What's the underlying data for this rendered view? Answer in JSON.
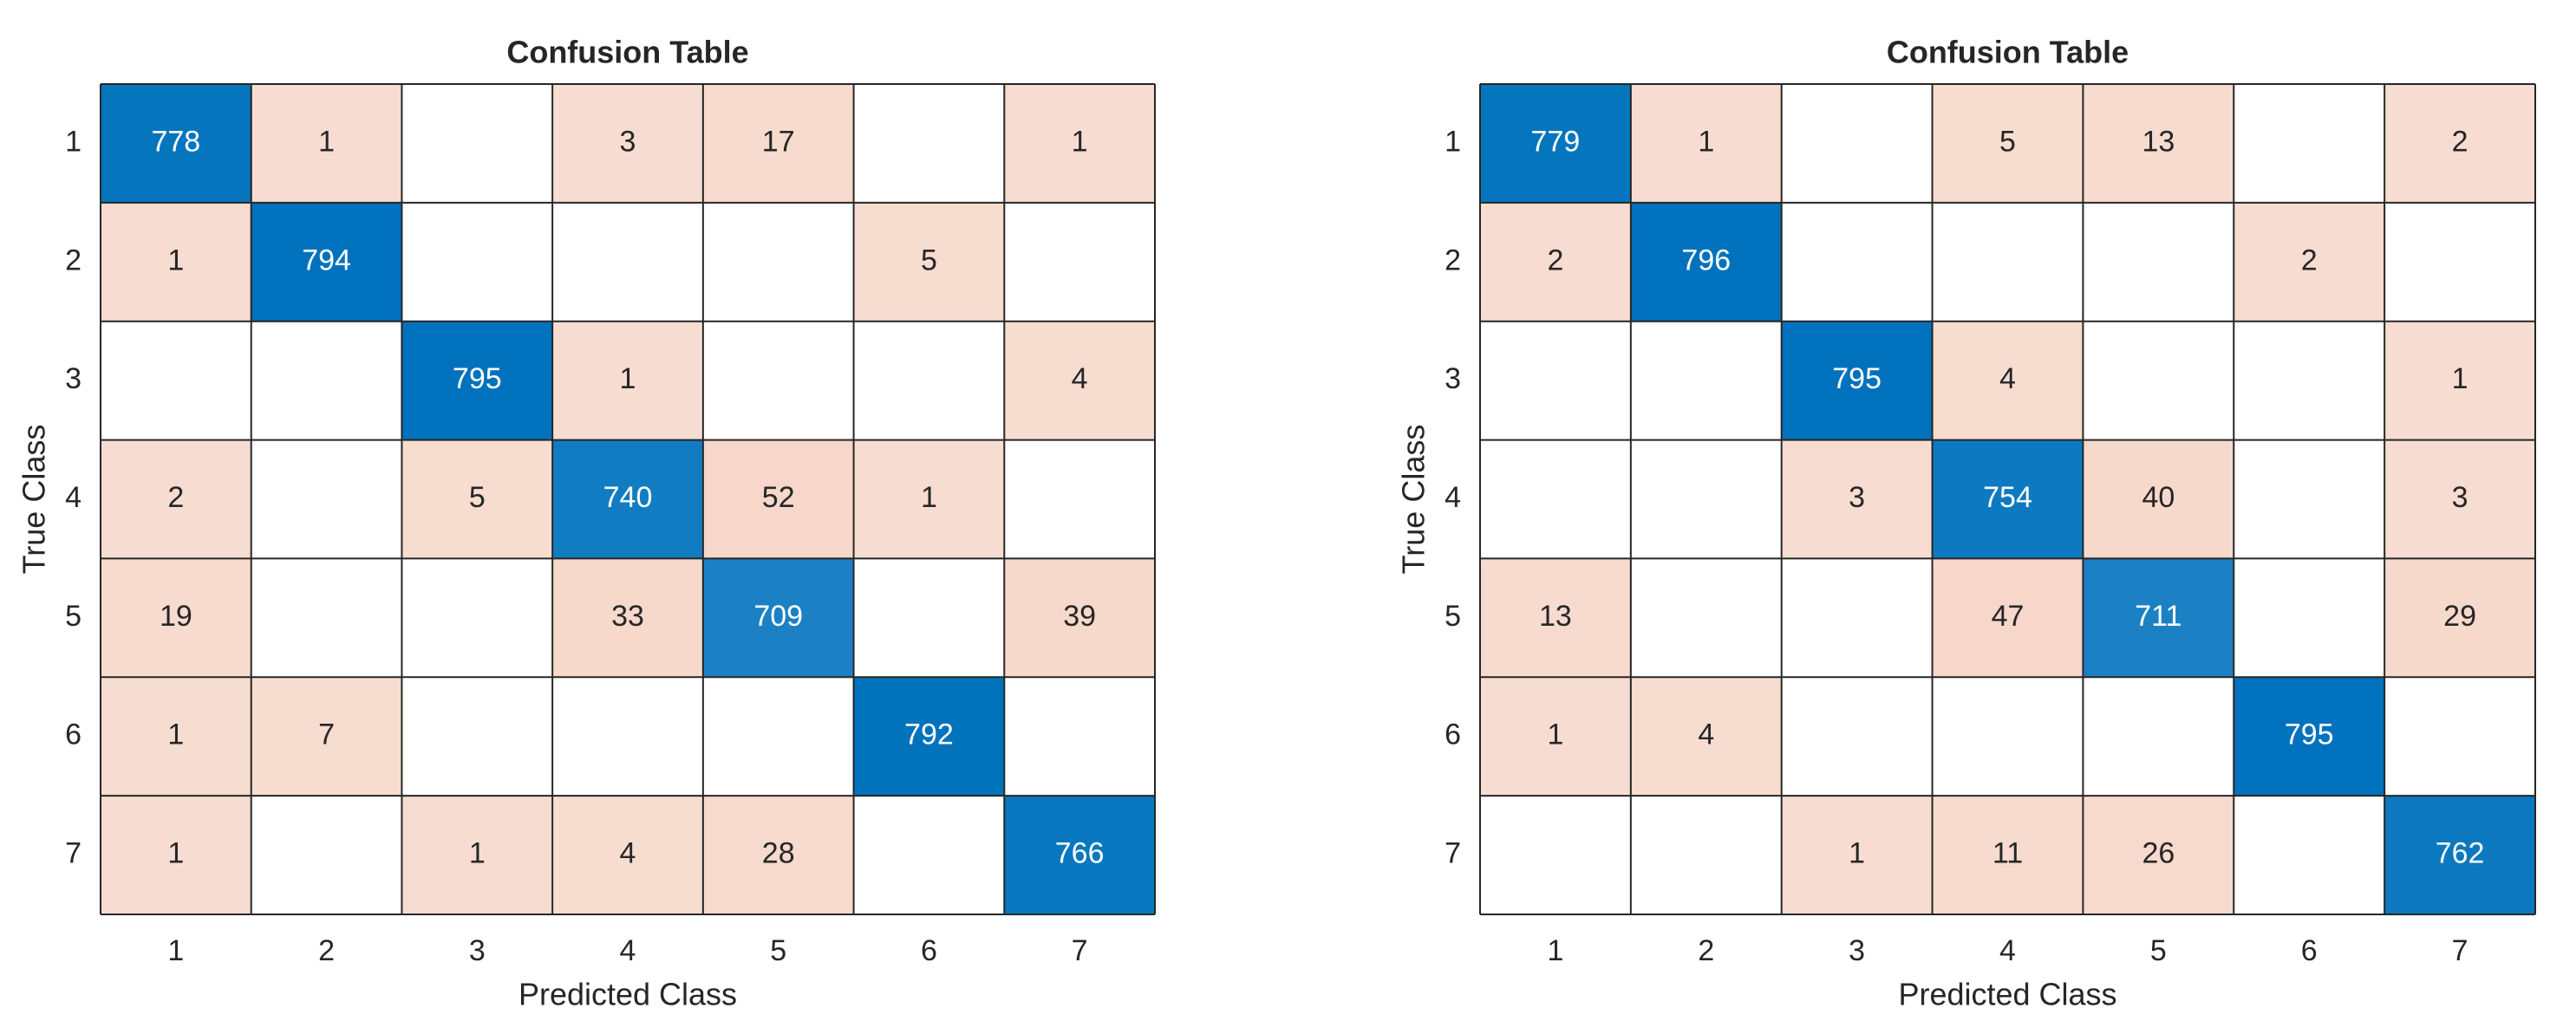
{
  "chart_data": [
    {
      "type": "heatmap",
      "title": "Confusion Table",
      "xlabel": "Predicted Class",
      "ylabel": "True Class",
      "categories": [
        "1",
        "2",
        "3",
        "4",
        "5",
        "6",
        "7"
      ],
      "y_categories": [
        "1",
        "2",
        "3",
        "4",
        "5",
        "6",
        "7"
      ],
      "diagonal_color": "#0072bd",
      "off_diagonal_color": "#d95319",
      "values": [
        [
          778,
          1,
          null,
          3,
          17,
          null,
          1
        ],
        [
          1,
          794,
          null,
          null,
          null,
          5,
          null
        ],
        [
          null,
          null,
          795,
          1,
          null,
          null,
          4
        ],
        [
          2,
          null,
          5,
          740,
          52,
          1,
          null
        ],
        [
          19,
          null,
          null,
          33,
          709,
          null,
          39
        ],
        [
          1,
          7,
          null,
          null,
          null,
          792,
          null
        ],
        [
          1,
          null,
          1,
          4,
          28,
          null,
          766
        ]
      ]
    },
    {
      "type": "heatmap",
      "title": "Confusion Table",
      "xlabel": "Predicted Class",
      "ylabel": "True Class",
      "categories": [
        "1",
        "2",
        "3",
        "4",
        "5",
        "6",
        "7"
      ],
      "y_categories": [
        "1",
        "2",
        "3",
        "4",
        "5",
        "6",
        "7"
      ],
      "diagonal_color": "#0072bd",
      "off_diagonal_color": "#d95319",
      "values": [
        [
          779,
          1,
          null,
          5,
          13,
          null,
          2
        ],
        [
          2,
          796,
          null,
          null,
          null,
          2,
          null
        ],
        [
          null,
          null,
          795,
          4,
          null,
          null,
          1
        ],
        [
          null,
          null,
          3,
          754,
          40,
          null,
          3
        ],
        [
          13,
          null,
          null,
          47,
          711,
          null,
          29
        ],
        [
          1,
          4,
          null,
          null,
          null,
          795,
          null
        ],
        [
          null,
          null,
          1,
          11,
          26,
          null,
          762
        ]
      ]
    }
  ]
}
